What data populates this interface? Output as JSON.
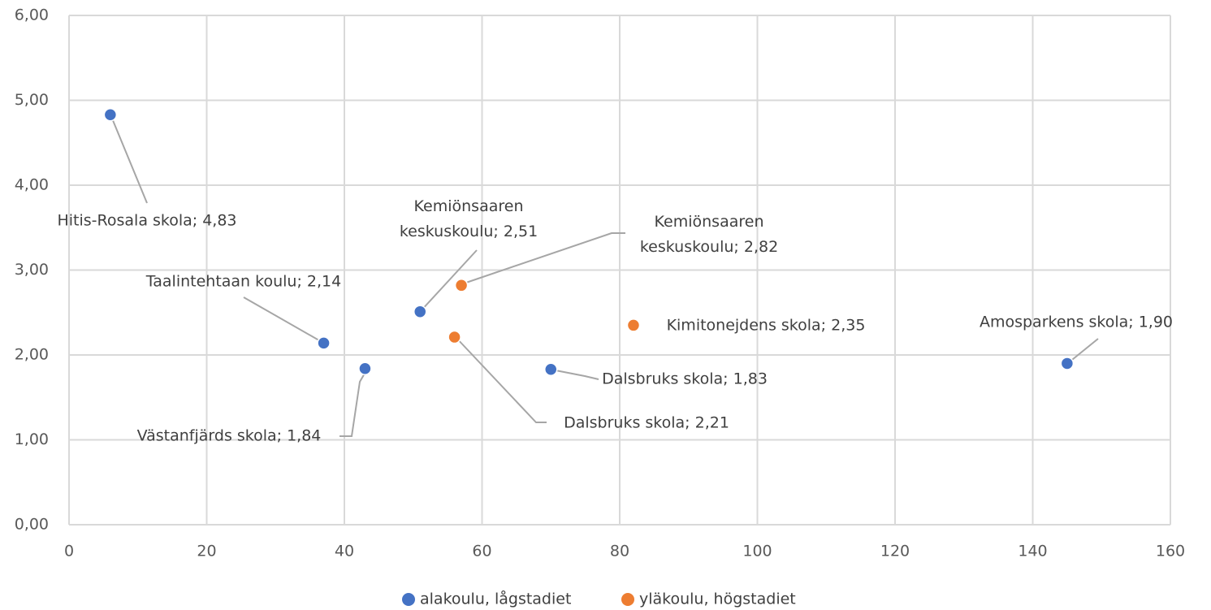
{
  "chart_data": {
    "type": "scatter",
    "xlim": [
      0,
      160
    ],
    "xticks": [
      0,
      20,
      40,
      60,
      80,
      100,
      120,
      140,
      160
    ],
    "ylim": [
      0,
      6
    ],
    "yticks": [
      {
        "value": 0,
        "label": "0,00"
      },
      {
        "value": 1,
        "label": "1,00"
      },
      {
        "value": 2,
        "label": "2,00"
      },
      {
        "value": 3,
        "label": "3,00"
      },
      {
        "value": 4,
        "label": "4,00"
      },
      {
        "value": 5,
        "label": "5,00"
      },
      {
        "value": 6,
        "label": "6,00"
      }
    ],
    "grid": true,
    "legend": "bottom",
    "series": [
      {
        "name": "alakoulu, lågstadiet",
        "color": "#4472c4",
        "x": [
          6,
          37,
          43,
          51,
          70,
          145
        ],
        "values": [
          4.83,
          2.14,
          1.84,
          2.51,
          1.83,
          1.9
        ],
        "value_labels": [
          "Hitis-Rosala skola; 4,83",
          "Taalintehtaan koulu; 2,14",
          "Västanfjärds skola; 1,84",
          "Kemiönsaaren\nkeskuskoulu; 2,51",
          "Dalsbruks skola; 1,83",
          "Amosparkens skola; 1,90"
        ]
      },
      {
        "name": "yläkoulu, högstadiet",
        "color": "#ed7d31",
        "x": [
          57,
          56,
          82
        ],
        "values": [
          2.82,
          2.21,
          2.35
        ],
        "value_labels": [
          "Kemiönsaaren\nkeskuskoulu; 2,82",
          "Dalsbruks skola; 2,21",
          "Kimitonejdens skola; 2,35"
        ]
      }
    ]
  }
}
